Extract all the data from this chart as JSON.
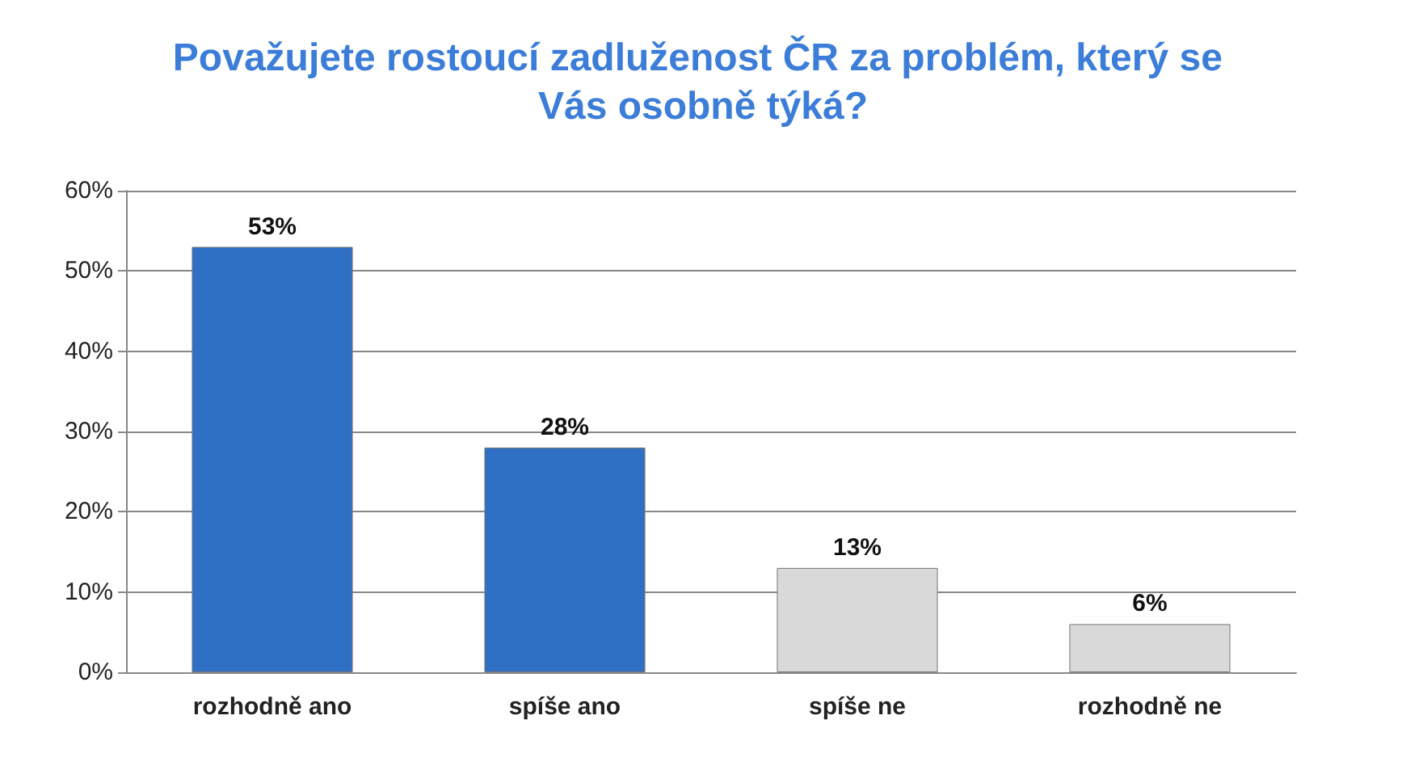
{
  "chart_data": {
    "type": "bar",
    "title": "Považujete rostoucí zadluženost ČR za problém, který se Vás osobně týká?",
    "categories": [
      "rozhodně ano",
      "spíše ano",
      "spíše ne",
      "rozhodně ne"
    ],
    "values": [
      53,
      28,
      13,
      6
    ],
    "colors": [
      "#2f6fc4",
      "#2f6fc4",
      "#d9d9d9",
      "#d9d9d9"
    ],
    "value_labels": [
      "53%",
      "28%",
      "13%",
      "6%"
    ],
    "ylim": [
      0,
      60
    ],
    "yticks": [
      {
        "value": 0,
        "label": "0%"
      },
      {
        "value": 10,
        "label": "10%"
      },
      {
        "value": 20,
        "label": "20%"
      },
      {
        "value": 30,
        "label": "30%"
      },
      {
        "value": 40,
        "label": "40%"
      },
      {
        "value": 50,
        "label": "50%"
      },
      {
        "value": 60,
        "label": "60%"
      }
    ],
    "grid": "y"
  }
}
